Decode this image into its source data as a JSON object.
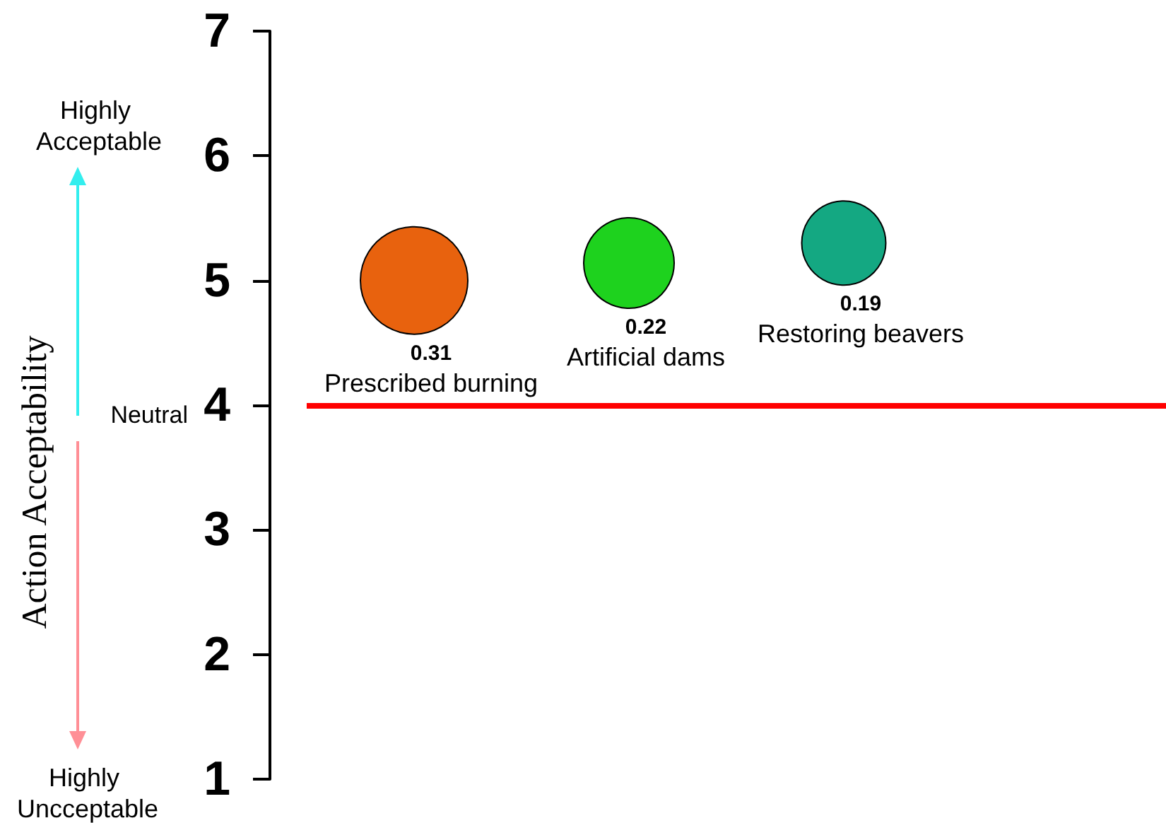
{
  "chart_data": {
    "type": "bubble",
    "ylabel": "Action Acceptability",
    "annotations": [
      "Highly Acceptable",
      "Neutral",
      "Highly Uncceptable"
    ],
    "categories": [
      null,
      null,
      null,
      null
    ],
    "series": [
      {
        "name": "Prescribed burning",
        "color": "#e8620e",
        "values": [
          5.0,
          null,
          null,
          null
        ],
        "sizes": [
          0.31,
          null,
          null,
          null
        ],
        "value_labels": [
          "0.31",
          null,
          null,
          null
        ]
      },
      {
        "name": "Artificial dams",
        "color": "#1ed21e",
        "values": [
          null,
          5.14,
          null,
          null
        ],
        "sizes": [
          null,
          0.22,
          null,
          null
        ],
        "value_labels": [
          null,
          "0.22",
          null,
          null
        ]
      },
      {
        "name": "Restoring beavers",
        "color": "#14a882",
        "values": [
          null,
          null,
          5.3,
          null
        ],
        "sizes": [
          null,
          null,
          0.19,
          null
        ],
        "value_labels": [
          null,
          null,
          "0.19",
          null
        ]
      }
    ],
    "ylim": [
      1,
      7
    ],
    "yticks": [
      1,
      2,
      3,
      4,
      5,
      6,
      7
    ],
    "ref_lines": [
      {
        "axis": "y",
        "value": 4,
        "color": "#ff0000"
      }
    ],
    "marker": "circle"
  }
}
